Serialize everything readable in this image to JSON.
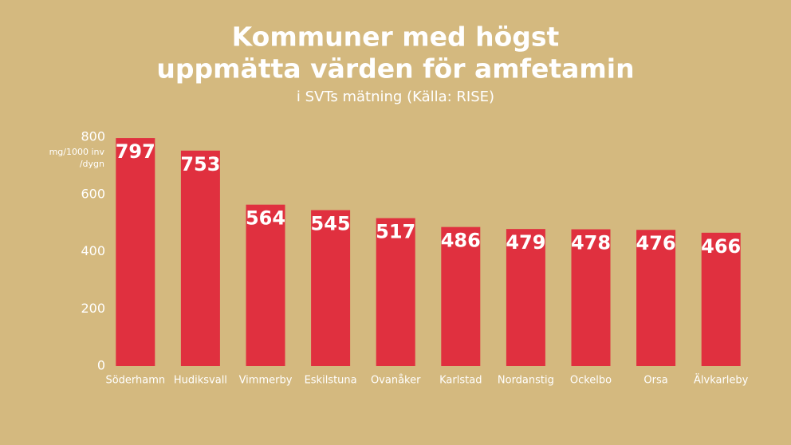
{
  "chart_data": {
    "type": "bar",
    "title": [
      "Kommuner med högst",
      "uppmätta värden för amfetamin"
    ],
    "subtitle": "i SVTs mätning (Källa: RISE)",
    "ylabel": [
      "mg/1000 inv",
      "/dygn"
    ],
    "categories": [
      "Söderhamn",
      "Hudiksvall",
      "Vimmerby",
      "Eskilstuna",
      "Ovanåker",
      "Karlstad",
      "Nordanstig",
      "Ockelbo",
      "Orsa",
      "Älvkarleby"
    ],
    "values": [
      797,
      753,
      564,
      545,
      517,
      486,
      479,
      478,
      476,
      466
    ],
    "color": "#e0303f",
    "ylim": [
      0,
      800
    ],
    "yticks": [
      0,
      200,
      400,
      600,
      800
    ],
    "grid": false
  }
}
